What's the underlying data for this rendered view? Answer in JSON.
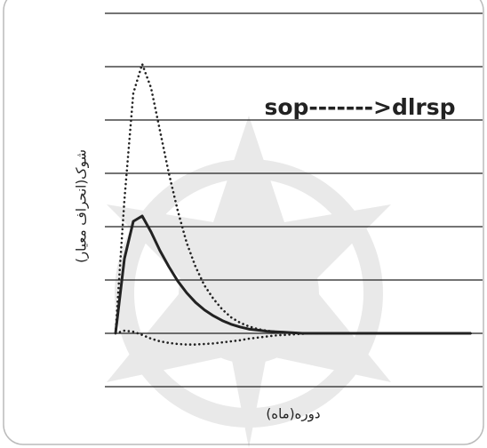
{
  "chart_data": {
    "type": "line",
    "title": "sop------->dlrsp",
    "y_label": "شوک(انحراف معیار)",
    "x_label": "دوره(ماه)",
    "x": [
      0,
      1,
      2,
      3,
      4,
      5,
      6,
      7,
      8,
      9,
      10,
      11,
      12,
      13,
      14,
      15,
      16,
      17,
      18,
      19,
      20,
      21,
      22,
      23,
      24,
      25,
      26,
      27,
      28,
      29,
      30,
      31,
      32,
      33,
      34,
      35,
      36,
      37,
      38,
      39,
      40
    ],
    "xlim": [
      0,
      40
    ],
    "ylim": [
      -1,
      6
    ],
    "yticks": [
      -1,
      0,
      1,
      2,
      3,
      4,
      5,
      6
    ],
    "tick_labels": false,
    "grid": true,
    "series": [
      {
        "color": "#222222",
        "dashed": true,
        "values": [
          0,
          2.5,
          4.5,
          5.05,
          4.6,
          3.8,
          3.0,
          2.3,
          1.7,
          1.25,
          0.9,
          0.65,
          0.45,
          0.3,
          0.2,
          0.13,
          0.08,
          0.05,
          0.03,
          0.02,
          0.01,
          0,
          0,
          0,
          0,
          0,
          0,
          0,
          0,
          0,
          0,
          0,
          0,
          0,
          0,
          0,
          0,
          0,
          0,
          0,
          0
        ]
      },
      {
        "color": "#222222",
        "dashed": false,
        "values": [
          0,
          1.4,
          2.1,
          2.2,
          1.9,
          1.55,
          1.25,
          0.98,
          0.76,
          0.58,
          0.44,
          0.33,
          0.24,
          0.17,
          0.12,
          0.08,
          0.06,
          0.04,
          0.03,
          0.02,
          0.01,
          0,
          0,
          0,
          0,
          0,
          0,
          0,
          0,
          0,
          0,
          0,
          0,
          0,
          0,
          0,
          0,
          0,
          0,
          0,
          0
        ]
      },
      {
        "color": "#222222",
        "dashed": true,
        "values": [
          0,
          0.05,
          0.03,
          -0.03,
          -0.1,
          -0.15,
          -0.18,
          -0.2,
          -0.21,
          -0.21,
          -0.2,
          -0.19,
          -0.17,
          -0.15,
          -0.13,
          -0.1,
          -0.08,
          -0.06,
          -0.04,
          -0.03,
          -0.02,
          -0.01,
          0,
          0,
          0,
          0,
          0,
          0,
          0,
          0,
          0,
          0,
          0,
          0,
          0,
          0,
          0,
          0,
          0,
          0,
          0
        ]
      }
    ]
  }
}
